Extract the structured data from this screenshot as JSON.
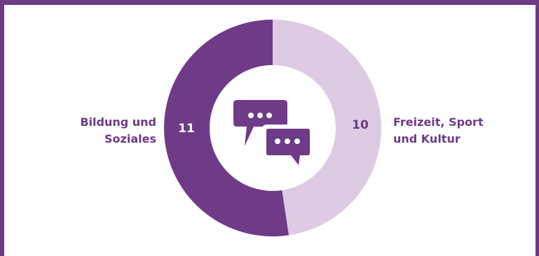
{
  "colors": {
    "accent": "#6f3a87",
    "light": "#dccbe2",
    "frame": "#6f3a87",
    "background": "#ffffff"
  },
  "icon": "chat-bubbles-icon",
  "chart_data": {
    "type": "pie",
    "style": "donut",
    "slices": [
      {
        "label": "Bildung und Soziales",
        "value": 11,
        "color": "#6f3a87"
      },
      {
        "label": "Freizeit, Sport und Kultur",
        "value": 10,
        "color": "#dccbe2"
      }
    ],
    "title": "",
    "legend": "none"
  }
}
